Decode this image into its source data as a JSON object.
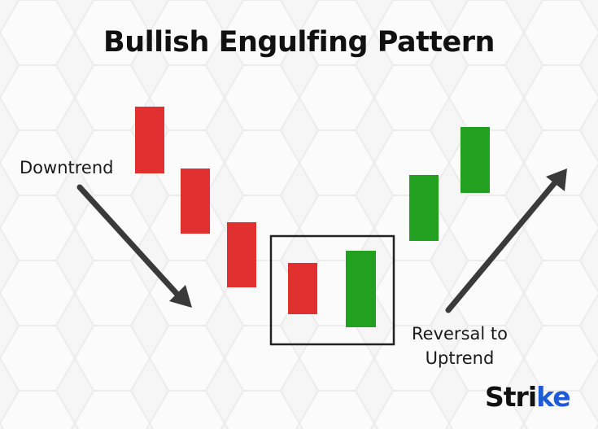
{
  "title": "Bullish Engulfing Pattern",
  "labels": {
    "downtrend": "Downtrend",
    "reversal_line1": "Reversal to",
    "reversal_line2": "Uptrend"
  },
  "logo": {
    "text_main": "Stri",
    "text_accent": "ke"
  },
  "colors": {
    "bearish": "#e03030",
    "bullish": "#22a020",
    "arrow": "#3a3a3a",
    "box": "#222222",
    "logo_accent": "#1e5bd8"
  },
  "candles": [
    {
      "type": "bearish"
    },
    {
      "type": "bearish"
    },
    {
      "type": "bearish"
    },
    {
      "type": "bearish",
      "highlighted": true
    },
    {
      "type": "bullish",
      "highlighted": true
    },
    {
      "type": "bullish"
    },
    {
      "type": "bullish"
    }
  ],
  "icons": {
    "down_arrow": "arrow-down-right-icon",
    "up_arrow": "arrow-up-right-icon"
  }
}
